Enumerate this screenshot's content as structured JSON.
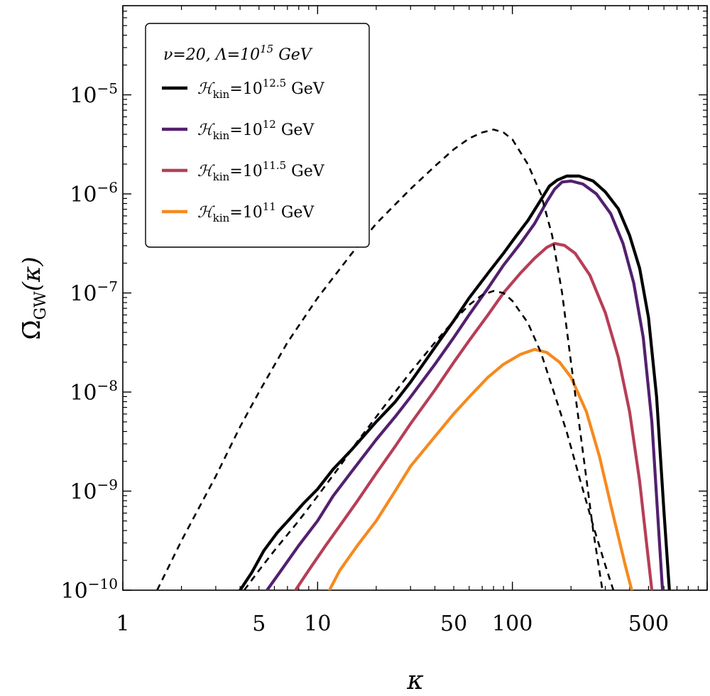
{
  "chart_data": {
    "type": "line",
    "title": "",
    "xlabel": "κ",
    "ylabel": "Ω̄GW(κ)",
    "ylabel_main": "Ω̄",
    "ylabel_sub": "GW",
    "ylabel_arg": "(κ)",
    "xscale": "log",
    "yscale": "log",
    "xlim": [
      1,
      1000
    ],
    "ylim_exp": [
      -10,
      -4.1
    ],
    "x_ticks": [
      1,
      5,
      10,
      50,
      100,
      500
    ],
    "x_tick_labels": [
      "1",
      "5",
      "10",
      "50",
      "100",
      "500"
    ],
    "y_ticks_exp": [
      -10,
      -9,
      -8,
      -7,
      -6,
      -5
    ],
    "y_tick_labels": [
      {
        "base": "10",
        "exp": "−10"
      },
      {
        "base": "10",
        "exp": "−9"
      },
      {
        "base": "10",
        "exp": "−8"
      },
      {
        "base": "10",
        "exp": "−7"
      },
      {
        "base": "10",
        "exp": "−6"
      },
      {
        "base": "10",
        "exp": "−5"
      }
    ],
    "legend": {
      "position": "top-left",
      "title": {
        "prefix": "ν=20, Λ=10",
        "exp": "15",
        "suffix": " GeV"
      },
      "entries": [
        {
          "symbol": "ℋ",
          "sub": "kin",
          "mid": "=10",
          "exp": "12.5",
          "suffix": " GeV",
          "color": "#000000"
        },
        {
          "symbol": "ℋ",
          "sub": "kin",
          "mid": "=10",
          "exp": "12",
          "suffix": " GeV",
          "color": "#52206e"
        },
        {
          "symbol": "ℋ",
          "sub": "kin",
          "mid": "=10",
          "exp": "11.5",
          "suffix": " GeV",
          "color": "#b63e56"
        },
        {
          "symbol": "ℋ",
          "sub": "kin",
          "mid": "=10",
          "exp": "11",
          "suffix": " GeV",
          "color": "#f58a1f"
        }
      ]
    },
    "series": [
      {
        "name": "Hkin=10^12.5 GeV",
        "color": "#000000",
        "style": "solid",
        "x": [
          4.0,
          4.6,
          5.3,
          6.2,
          7.2,
          8.5,
          10,
          12,
          15,
          20,
          25,
          30,
          40,
          50,
          60,
          75,
          90,
          105,
          120,
          140,
          155,
          170,
          190,
          220,
          260,
          300,
          350,
          400,
          450,
          500,
          550,
          600,
          640
        ],
        "y_exp": [
          -10,
          -9.82,
          -9.6,
          -9.42,
          -9.28,
          -9.12,
          -8.98,
          -8.78,
          -8.58,
          -8.3,
          -8.1,
          -7.9,
          -7.55,
          -7.28,
          -7.05,
          -6.8,
          -6.6,
          -6.42,
          -6.27,
          -6.06,
          -5.92,
          -5.86,
          -5.82,
          -5.82,
          -5.87,
          -5.98,
          -6.15,
          -6.42,
          -6.75,
          -7.25,
          -8.05,
          -9.2,
          -10
        ]
      },
      {
        "name": "Hkin=10^12 GeV",
        "color": "#52206e",
        "style": "solid",
        "x": [
          5.5,
          6.5,
          8,
          10,
          12,
          15,
          20,
          25,
          30,
          40,
          50,
          60,
          75,
          90,
          110,
          130,
          150,
          165,
          180,
          200,
          230,
          270,
          320,
          370,
          420,
          470,
          520,
          560,
          590
        ],
        "y_exp": [
          -10,
          -9.8,
          -9.55,
          -9.3,
          -9.05,
          -8.8,
          -8.48,
          -8.25,
          -8.05,
          -7.72,
          -7.45,
          -7.22,
          -6.95,
          -6.72,
          -6.5,
          -6.3,
          -6.08,
          -5.95,
          -5.88,
          -5.87,
          -5.9,
          -6.0,
          -6.2,
          -6.5,
          -6.9,
          -7.45,
          -8.3,
          -9.3,
          -10
        ]
      },
      {
        "name": "Hkin=10^11.5 GeV",
        "color": "#b63e56",
        "style": "solid",
        "x": [
          7.7,
          9,
          11,
          13,
          16,
          20,
          25,
          30,
          40,
          50,
          60,
          75,
          90,
          110,
          130,
          150,
          165,
          185,
          210,
          250,
          300,
          350,
          400,
          450,
          490,
          520
        ],
        "y_exp": [
          -10,
          -9.8,
          -9.55,
          -9.35,
          -9.1,
          -8.82,
          -8.55,
          -8.32,
          -7.98,
          -7.7,
          -7.48,
          -7.22,
          -7.0,
          -6.8,
          -6.65,
          -6.54,
          -6.5,
          -6.52,
          -6.6,
          -6.82,
          -7.2,
          -7.65,
          -8.2,
          -8.9,
          -9.55,
          -10
        ]
      },
      {
        "name": "Hkin=10^11 GeV",
        "color": "#f58a1f",
        "style": "solid",
        "x": [
          11.5,
          13,
          16,
          20,
          25,
          30,
          40,
          50,
          60,
          75,
          90,
          110,
          130,
          150,
          175,
          200,
          240,
          280,
          330,
          380,
          410
        ],
        "y_exp": [
          -10,
          -9.8,
          -9.55,
          -9.3,
          -9.0,
          -8.75,
          -8.45,
          -8.22,
          -8.05,
          -7.85,
          -7.72,
          -7.62,
          -7.57,
          -7.6,
          -7.7,
          -7.85,
          -8.2,
          -8.65,
          -9.25,
          -9.75,
          -10
        ]
      },
      {
        "name": "dashed-upper",
        "color": "#000000",
        "style": "dashed",
        "x": [
          1.5,
          2,
          3,
          4,
          5,
          7,
          10,
          15,
          20,
          30,
          40,
          50,
          60,
          70,
          80,
          90,
          100,
          120,
          140,
          160,
          180,
          200,
          230,
          260,
          290
        ],
        "y_exp": [
          -10,
          -9.5,
          -8.85,
          -8.35,
          -8.0,
          -7.5,
          -7.05,
          -6.6,
          -6.3,
          -5.95,
          -5.72,
          -5.55,
          -5.44,
          -5.38,
          -5.35,
          -5.38,
          -5.45,
          -5.7,
          -6.0,
          -6.42,
          -7.0,
          -7.7,
          -8.6,
          -9.4,
          -10
        ]
      },
      {
        "name": "dashed-lower",
        "color": "#000000",
        "style": "dashed",
        "x": [
          4.2,
          5,
          6,
          8,
          10,
          13,
          16,
          20,
          25,
          30,
          40,
          50,
          60,
          70,
          80,
          90,
          100,
          120,
          140,
          160,
          190,
          220,
          260,
          300,
          330,
          350
        ],
        "y_exp": [
          -10,
          -9.8,
          -9.6,
          -9.3,
          -9.05,
          -8.75,
          -8.5,
          -8.25,
          -8.0,
          -7.8,
          -7.5,
          -7.28,
          -7.12,
          -7.02,
          -6.98,
          -7.0,
          -7.08,
          -7.3,
          -7.6,
          -7.95,
          -8.4,
          -8.85,
          -9.35,
          -9.75,
          -10,
          -10.1
        ]
      }
    ]
  }
}
